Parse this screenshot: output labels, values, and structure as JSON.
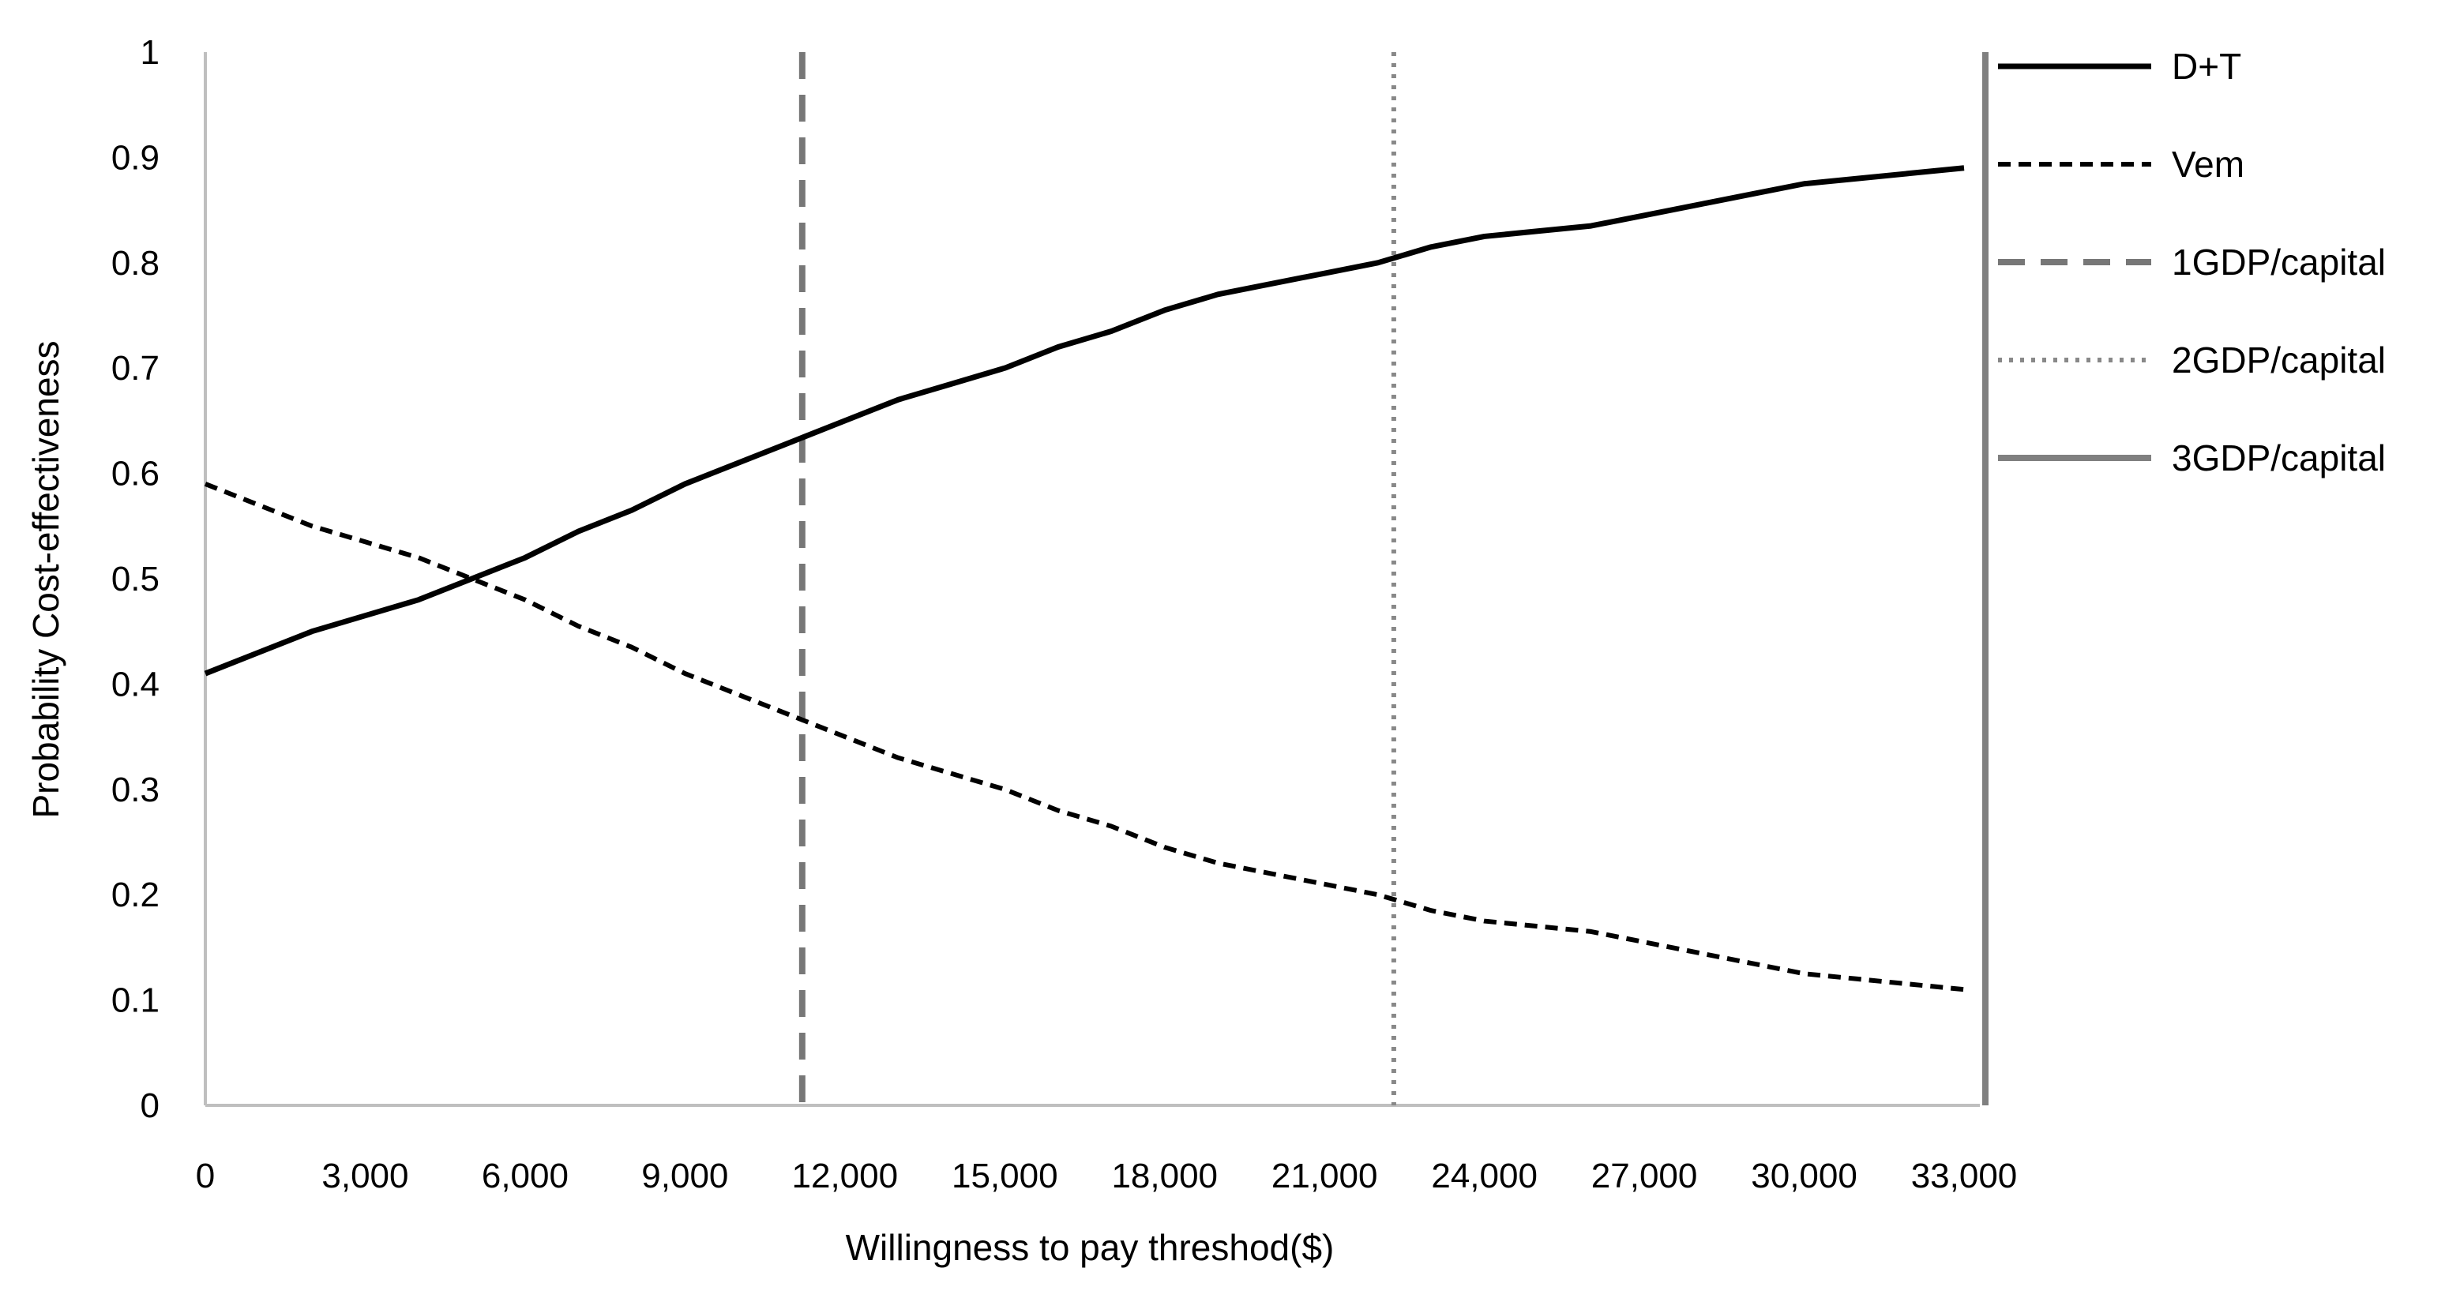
{
  "chart_data": {
    "type": "line",
    "title": "",
    "xlabel": "Willingness to pay threshod($)",
    "ylabel": "Probability Cost-effectiveness",
    "xlim": [
      0,
      33000
    ],
    "ylim": [
      0,
      1
    ],
    "x_ticks": [
      0,
      3000,
      6000,
      9000,
      12000,
      15000,
      18000,
      21000,
      24000,
      27000,
      30000,
      33000
    ],
    "x_tick_labels": [
      "0",
      "3,000",
      "6,000",
      "9,000",
      "12,000",
      "15,000",
      "18,000",
      "21,000",
      "24,000",
      "27,000",
      "30,000",
      "33,000"
    ],
    "y_ticks": [
      0,
      0.1,
      0.2,
      0.3,
      0.4,
      0.5,
      0.6,
      0.7,
      0.8,
      0.9,
      1
    ],
    "y_tick_labels": [
      "0",
      "0.1",
      "0.2",
      "0.3",
      "0.4",
      "0.5",
      "0.6",
      "0.7",
      "0.8",
      "0.9",
      "1"
    ],
    "grid": false,
    "legend_position": "right",
    "x": [
      0,
      1000,
      2000,
      3000,
      4000,
      5000,
      6000,
      7000,
      8000,
      9000,
      10000,
      11000,
      12000,
      13000,
      14000,
      15000,
      16000,
      17000,
      18000,
      19000,
      20000,
      21000,
      22000,
      23000,
      24000,
      25000,
      26000,
      27000,
      28000,
      29000,
      30000,
      31000,
      32000,
      33000
    ],
    "series": [
      {
        "name": "D+T",
        "style": "solid",
        "color": "#000000",
        "values": [
          0.41,
          0.43,
          0.45,
          0.465,
          0.48,
          0.5,
          0.52,
          0.545,
          0.565,
          0.59,
          0.61,
          0.63,
          0.65,
          0.67,
          0.685,
          0.7,
          0.72,
          0.735,
          0.755,
          0.77,
          0.78,
          0.79,
          0.8,
          0.815,
          0.825,
          0.83,
          0.835,
          0.845,
          0.855,
          0.865,
          0.875,
          0.88,
          0.885,
          0.89
        ]
      },
      {
        "name": "Vem",
        "style": "dashed",
        "color": "#000000",
        "values": [
          0.59,
          0.57,
          0.55,
          0.535,
          0.52,
          0.5,
          0.48,
          0.455,
          0.435,
          0.41,
          0.39,
          0.37,
          0.35,
          0.33,
          0.315,
          0.3,
          0.28,
          0.265,
          0.245,
          0.23,
          0.22,
          0.21,
          0.2,
          0.185,
          0.175,
          0.17,
          0.165,
          0.155,
          0.145,
          0.135,
          0.125,
          0.12,
          0.115,
          0.11
        ]
      }
    ],
    "reference_lines": [
      {
        "name": "1GDP/capital",
        "x": 11200,
        "style": "long-dash",
        "color": "#777777"
      },
      {
        "name": "2GDP/capital",
        "x": 22300,
        "style": "dotted",
        "color": "#888888"
      },
      {
        "name": "3GDP/capital",
        "x": 33400,
        "style": "solid",
        "color": "#808080"
      }
    ]
  }
}
